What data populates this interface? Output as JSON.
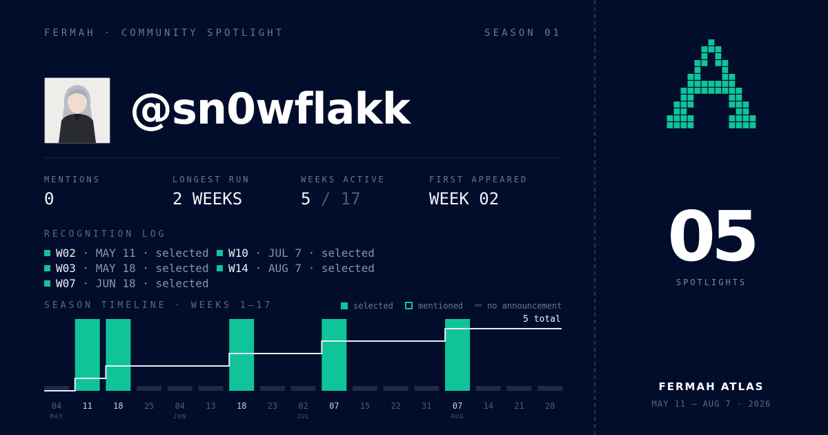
{
  "header": {
    "left": "FERMAH · COMMUNITY SPOTLIGHT",
    "right": "SEASON 01"
  },
  "profile": {
    "handle": "@sn0wflakk"
  },
  "stats": [
    {
      "label": "MENTIONS",
      "value": "0",
      "suffix": ""
    },
    {
      "label": "LONGEST RUN",
      "value": "2 WEEKS",
      "suffix": ""
    },
    {
      "label": "WEEKS ACTIVE",
      "value": "5",
      "suffix": "/ 17"
    },
    {
      "label": "FIRST APPEARED",
      "value": "WEEK 02",
      "suffix": ""
    }
  ],
  "log": {
    "label": "RECOGNITION LOG",
    "items": [
      {
        "week": "W02",
        "rest": "· MAY 11 · selected"
      },
      {
        "week": "W03",
        "rest": "· MAY 18 · selected"
      },
      {
        "week": "W07",
        "rest": "· JUN 18 · selected"
      },
      {
        "week": "W10",
        "rest": "· JUL 7 · selected"
      },
      {
        "week": "W14",
        "rest": "· AUG 7 · selected"
      }
    ]
  },
  "timeline": {
    "label": "SEASON TIMELINE · WEEKS 1–17",
    "legend": {
      "selected": "selected",
      "mentioned": "mentioned",
      "none": "no announcement"
    },
    "total_label": "5 total",
    "colors": {
      "selected": "#10c49a",
      "none": "#1e2a47",
      "line": "#e8ecf5"
    }
  },
  "chart_data": {
    "type": "bar",
    "categories": [
      "04",
      "11",
      "18",
      "25",
      "04",
      "13",
      "18",
      "23",
      "02",
      "07",
      "15",
      "22",
      "31",
      "07",
      "14",
      "21",
      "28"
    ],
    "month_labels": [
      "MAY",
      "",
      "",
      "",
      "JUN",
      "",
      "",
      "",
      "JUL",
      "",
      "",
      "",
      "",
      "AUG",
      "",
      "",
      ""
    ],
    "status": [
      "none",
      "selected",
      "selected",
      "none",
      "none",
      "none",
      "selected",
      "none",
      "none",
      "selected",
      "none",
      "none",
      "none",
      "selected",
      "none",
      "none",
      "none"
    ],
    "cumulative": [
      0,
      1,
      2,
      2,
      2,
      2,
      3,
      3,
      3,
      4,
      4,
      4,
      4,
      5,
      5,
      5,
      5
    ],
    "legend": [
      "selected",
      "mentioned",
      "no announcement"
    ],
    "legend_position": "top-right"
  },
  "sidebar": {
    "count": "05",
    "count_label": "SPOTLIGHTS",
    "brand": "FERMAH ATLAS",
    "range": "MAY 11 — AUG 7 · 2026",
    "logo_color": "#10c49a",
    "logo_icon": "pixel-a-logo"
  }
}
